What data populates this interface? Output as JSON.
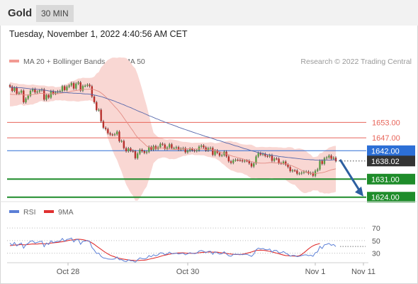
{
  "header": {
    "title": "Gold",
    "timeframe": "30 MIN"
  },
  "datetime": "Tuesday, November 1, 2022 4:40:56 AM CET",
  "colors": {
    "resistance": "#e8655a",
    "support": "#1e8c2a",
    "pivot": "#2c6fd6",
    "price_tag": "#333333",
    "bollinger_fill": "#f9d7d3",
    "ma20": "#e38c84",
    "ma50": "#5566aa",
    "candle_up": "#5c9b45",
    "candle_down": "#b7312d",
    "arrow": "#2d5fa0",
    "rsi": "#5b7fd6",
    "rsi_ma": "#e03030"
  },
  "chart_data": [
    {
      "type": "candlestick",
      "title": "",
      "legend": [
        "MA 20 + Bollinger Bands",
        "MA 50"
      ],
      "credit": "Research © 2022 Trading Central",
      "x_ticks": [
        "Oct 28",
        "Oct 30",
        "Nov 1",
        "Nov 11"
      ],
      "y_range": [
        1622,
        1674
      ],
      "close": [
        1666.8,
        1665.2,
        1666.4,
        1664.1,
        1664.5,
        1665.3,
        1660.8,
        1662.2,
        1663.3,
        1665.2,
        1665.9,
        1664.6,
        1664.9,
        1665.4,
        1665.8,
        1661.8,
        1663.6,
        1662.6,
        1665.1,
        1664.1,
        1664.6,
        1665.0,
        1665.1,
        1667.0,
        1665.5,
        1666.8,
        1667.3,
        1668.2,
        1666.1,
        1668.0,
        1668.5,
        1665.3,
        1667.1,
        1667.2,
        1667.6,
        1667.0,
        1663.0,
        1660.8,
        1657.7,
        1657.9,
        1653.4,
        1650.9,
        1650.4,
        1648.8,
        1648.3,
        1648.2,
        1648.4,
        1649.4,
        1645.7,
        1645.8,
        1643.0,
        1641.8,
        1642.9,
        1642.0,
        1641.8,
        1639.1,
        1640.9,
        1642.4,
        1641.8,
        1641.2,
        1641.6,
        1643.5,
        1642.4,
        1643.8,
        1642.7,
        1643.4,
        1644.7,
        1644.4,
        1642.7,
        1643.3,
        1644.5,
        1643.0,
        1643.0,
        1643.4,
        1642.4,
        1642.8,
        1643.0,
        1641.4,
        1642.0,
        1642.8,
        1642.2,
        1641.9,
        1642.2,
        1643.6,
        1644.0,
        1643.3,
        1642.1,
        1643.0,
        1643.1,
        1640.4,
        1642.1,
        1641.2,
        1640.1,
        1640.3,
        1641.6,
        1639.8,
        1637.9,
        1637.3,
        1638.3,
        1638.5,
        1638.4,
        1638.3,
        1637.9,
        1638.2,
        1638.1,
        1637.1,
        1635.9,
        1637.1,
        1639.8,
        1641.1,
        1640.5,
        1640.8,
        1640.0,
        1639.8,
        1640.3,
        1638.1,
        1639.0,
        1638.9,
        1637.2,
        1637.1,
        1637.8,
        1636.6,
        1635.7,
        1634.1,
        1634.4,
        1634.3,
        1633.1,
        1633.2,
        1633.5,
        1633.9,
        1633.9,
        1633.2,
        1633.4,
        1632.3,
        1634.2,
        1634.8,
        1638.1,
        1636.9,
        1639.1,
        1639.4,
        1640.1,
        1638.9,
        1639.3,
        1638.02
      ],
      "ma20": [
        1663.9,
        1663.8,
        1663.8,
        1663.8,
        1663.8,
        1663.9,
        1663.6,
        1663.6,
        1663.6,
        1663.7,
        1663.8,
        1663.9,
        1664.0,
        1664.2,
        1664.3,
        1664.1,
        1664.0,
        1663.9,
        1664.1,
        1664.1,
        1664.1,
        1664.1,
        1664.2,
        1664.4,
        1664.5,
        1664.6,
        1664.8,
        1665.1,
        1665.2,
        1665.3,
        1665.5,
        1665.6,
        1665.8,
        1665.8,
        1665.8,
        1665.9,
        1665.8,
        1665.7,
        1665.3,
        1665.0,
        1664.4,
        1663.7,
        1662.9,
        1662.0,
        1661.1,
        1660.1,
        1659.1,
        1658.2,
        1657.1,
        1656.0,
        1654.7,
        1653.4,
        1652.2,
        1650.9,
        1649.7,
        1648.3,
        1647.2,
        1646.3,
        1645.5,
        1644.7,
        1643.8,
        1643.4,
        1643.2,
        1643.1,
        1643.1,
        1643.1,
        1643.1,
        1643.1,
        1642.9,
        1642.7,
        1642.6,
        1642.6,
        1642.5,
        1642.5,
        1642.6,
        1642.6,
        1642.7,
        1642.7,
        1642.8,
        1642.8,
        1642.8,
        1642.7,
        1642.7,
        1642.7,
        1642.7,
        1642.7,
        1642.5,
        1642.4,
        1642.4,
        1642.2,
        1642.0,
        1641.8,
        1641.6,
        1641.3,
        1641.0,
        1640.7,
        1640.4,
        1640.1,
        1639.8,
        1639.6,
        1639.3,
        1639.1,
        1638.9,
        1638.6,
        1638.4,
        1638.1,
        1637.8,
        1637.6,
        1637.4,
        1637.3,
        1637.2,
        1637.2,
        1637.2,
        1637.3,
        1637.4,
        1637.4,
        1637.3,
        1637.3,
        1637.2,
        1637.1,
        1637.0,
        1636.9,
        1636.7,
        1636.4,
        1636.1,
        1635.7,
        1635.3,
        1634.9,
        1634.4,
        1634.0,
        1633.7,
        1633.5,
        1633.3,
        1633.1,
        1633.1,
        1633.2,
        1633.4,
        1633.5,
        1633.7,
        1634.0,
        1634.3,
        1634.6,
        1634.8,
        1635.0
      ],
      "bollinger_upper": [
        1668.6,
        1668.4,
        1668.2,
        1668.1,
        1667.8,
        1667.8,
        1667.8,
        1667.6,
        1667.5,
        1667.5,
        1667.7,
        1667.5,
        1667.4,
        1667.3,
        1667.3,
        1667.3,
        1667.1,
        1666.9,
        1667.0,
        1667.0,
        1666.6,
        1666.7,
        1666.8,
        1667.4,
        1667.5,
        1667.9,
        1668.4,
        1669.0,
        1669.1,
        1669.5,
        1670.0,
        1670.0,
        1670.3,
        1670.2,
        1670.2,
        1670.2,
        1670.3,
        1670.7,
        1671.9,
        1672.5,
        1674.3,
        1675.2,
        1676.3,
        1677.2,
        1677.7,
        1678.1,
        1678.1,
        1678.0,
        1678.2,
        1678.1,
        1678.1,
        1677.9,
        1677.1,
        1676.1,
        1674.8,
        1673.9,
        1671.7,
        1668.8,
        1665.8,
        1662.5,
        1659.5,
        1655.9,
        1652.4,
        1649.0,
        1648.1,
        1647.3,
        1647.1,
        1646.8,
        1646.4,
        1646.3,
        1646.5,
        1646.4,
        1646.3,
        1646.1,
        1645.9,
        1645.6,
        1645.4,
        1645.4,
        1645.3,
        1645.2,
        1645.0,
        1645.1,
        1645.1,
        1645.1,
        1645.2,
        1645.2,
        1645.1,
        1645.2,
        1645.3,
        1645.2,
        1644.9,
        1645.0,
        1645.2,
        1645.5,
        1645.5,
        1645.7,
        1645.8,
        1645.8,
        1645.4,
        1645.4,
        1645.1,
        1644.7,
        1644.5,
        1644.4,
        1644.3,
        1644.4,
        1644.3,
        1643.9,
        1643.4,
        1643.4,
        1643.5,
        1643.5,
        1643.4,
        1643.4,
        1643.5,
        1643.4,
        1643.4,
        1643.4,
        1643.3,
        1643.3,
        1643.1,
        1643.1,
        1643.4,
        1643.4,
        1643.2,
        1642.6,
        1642.8,
        1642.9,
        1642.7,
        1642.4,
        1641.8,
        1641.0,
        1640.5,
        1639.5,
        1639.6,
        1639.8,
        1641.0,
        1641.2,
        1642.0,
        1642.5,
        1643.2,
        1643.5,
        1643.8,
        1643.9
      ],
      "bollinger_lower": [
        1659.2,
        1659.2,
        1659.4,
        1659.5,
        1659.8,
        1660.0,
        1659.4,
        1659.6,
        1659.7,
        1659.9,
        1659.9,
        1660.3,
        1660.6,
        1661.1,
        1661.3,
        1660.9,
        1660.9,
        1660.9,
        1661.2,
        1661.2,
        1661.6,
        1661.5,
        1661.6,
        1661.4,
        1661.5,
        1661.3,
        1661.2,
        1661.2,
        1661.3,
        1661.1,
        1661.0,
        1661.2,
        1661.3,
        1661.4,
        1661.4,
        1661.6,
        1661.3,
        1660.7,
        1658.7,
        1657.5,
        1654.5,
        1652.2,
        1649.5,
        1646.8,
        1644.5,
        1642.1,
        1640.1,
        1638.4,
        1636.0,
        1633.9,
        1631.3,
        1628.9,
        1627.3,
        1625.7,
        1624.6,
        1622.7,
        1622.7,
        1623.8,
        1625.2,
        1626.9,
        1628.1,
        1630.9,
        1634.0,
        1637.2,
        1638.1,
        1638.9,
        1639.1,
        1639.4,
        1639.4,
        1639.1,
        1638.7,
        1638.8,
        1638.7,
        1638.9,
        1639.3,
        1639.6,
        1640.0,
        1640.0,
        1640.3,
        1640.4,
        1640.6,
        1640.3,
        1640.3,
        1640.3,
        1640.2,
        1640.2,
        1639.9,
        1639.6,
        1639.5,
        1639.2,
        1639.1,
        1638.6,
        1638.0,
        1637.1,
        1636.5,
        1635.7,
        1635.0,
        1634.4,
        1634.2,
        1633.8,
        1633.5,
        1633.5,
        1633.3,
        1632.8,
        1632.5,
        1631.8,
        1631.3,
        1631.3,
        1631.4,
        1631.2,
        1630.9,
        1630.9,
        1631.0,
        1631.2,
        1631.3,
        1631.4,
        1631.2,
        1631.2,
        1631.1,
        1630.9,
        1630.9,
        1630.7,
        1630.0,
        1629.4,
        1629.0,
        1628.8,
        1627.8,
        1626.9,
        1626.1,
        1625.6,
        1625.6,
        1626.0,
        1626.1,
        1626.7,
        1626.6,
        1626.6,
        1625.8,
        1625.8,
        1625.4,
        1625.5,
        1625.4,
        1625.7,
        1625.8,
        1626.1
      ],
      "ma50": [
        1666.7,
        1666.6,
        1666.5,
        1666.5,
        1666.4,
        1666.4,
        1666.3,
        1666.2,
        1666.1,
        1666.0,
        1665.9,
        1665.9,
        1665.8,
        1665.7,
        1665.6,
        1665.5,
        1665.4,
        1665.2,
        1665.1,
        1665.0,
        1664.9,
        1664.8,
        1664.7,
        1664.6,
        1664.5,
        1664.5,
        1664.4,
        1664.4,
        1664.3,
        1664.3,
        1664.2,
        1664.2,
        1664.1,
        1664.0,
        1664.0,
        1663.9,
        1663.8,
        1663.6,
        1663.4,
        1663.2,
        1663.0,
        1662.7,
        1662.4,
        1662.1,
        1661.8,
        1661.5,
        1661.2,
        1660.8,
        1660.5,
        1660.1,
        1659.8,
        1659.4,
        1659.0,
        1658.7,
        1658.3,
        1657.9,
        1657.5,
        1657.1,
        1656.8,
        1656.4,
        1656.0,
        1655.6,
        1655.3,
        1654.9,
        1654.5,
        1654.2,
        1653.8,
        1653.5,
        1653.1,
        1652.8,
        1652.4,
        1652.1,
        1651.8,
        1651.5,
        1651.1,
        1650.8,
        1650.5,
        1650.2,
        1649.9,
        1649.6,
        1649.3,
        1649.0,
        1648.7,
        1648.4,
        1648.1,
        1647.8,
        1647.5,
        1647.3,
        1647.0,
        1646.7,
        1646.4,
        1646.1,
        1645.9,
        1645.6,
        1645.3,
        1645.0,
        1644.8,
        1644.5,
        1644.2,
        1643.9,
        1643.7,
        1643.4,
        1643.1,
        1642.8,
        1642.6,
        1642.3,
        1642.0,
        1641.8,
        1641.5,
        1641.3,
        1641.1,
        1640.9,
        1640.7,
        1640.5,
        1640.4,
        1640.2,
        1640.1,
        1640.0,
        1639.8,
        1639.7,
        1639.6,
        1639.5,
        1639.4,
        1639.3,
        1639.2,
        1639.1,
        1639.0,
        1638.9,
        1638.8,
        1638.7,
        1638.6,
        1638.6,
        1638.5,
        1638.5,
        1638.4,
        1638.4,
        1638.4,
        1638.4,
        1638.4,
        1638.4,
        1638.4,
        1638.4,
        1638.5,
        1638.5
      ],
      "levels": [
        {
          "value": 1653.0,
          "label": "1653.00",
          "kind": "resistance"
        },
        {
          "value": 1647.0,
          "label": "1647.00",
          "kind": "resistance"
        },
        {
          "value": 1642.0,
          "label": "1642.00",
          "kind": "pivot"
        },
        {
          "value": 1638.02,
          "label": "1638.02",
          "kind": "price"
        },
        {
          "value": 1631.0,
          "label": "1631.00",
          "kind": "support"
        },
        {
          "value": 1624.0,
          "label": "1624.00",
          "kind": "support"
        }
      ],
      "forecast_arrow": {
        "from": 1638.02,
        "to": 1624.0
      }
    },
    {
      "type": "line",
      "title": "",
      "legend": [
        "RSI",
        "9MA"
      ],
      "y_range": [
        15,
        78
      ],
      "y_ticks": [
        70,
        50,
        30
      ],
      "x_ticks": [
        "Oct 28",
        "Oct 30",
        "Nov 1",
        "Nov 11"
      ],
      "series": [
        {
          "name": "RSI",
          "values": [
            46.2,
            42.3,
            47.1,
            41.5,
            44.4,
            46.3,
            38.0,
            43.3,
            45.6,
            49.2,
            49.8,
            46.0,
            47.2,
            48.4,
            49.2,
            40.3,
            46.2,
            43.9,
            49.8,
            46.8,
            48.1,
            48.9,
            49.0,
            53.5,
            48.9,
            51.9,
            52.6,
            54.0,
            47.8,
            51.6,
            51.8,
            44.1,
            48.9,
            49.2,
            50.3,
            48.5,
            39.1,
            35.0,
            29.6,
            30.2,
            25.0,
            22.5,
            22.1,
            20.9,
            20.6,
            20.5,
            21.1,
            24.2,
            19.7,
            20.0,
            17.7,
            16.7,
            19.5,
            18.2,
            18.0,
            15.6,
            19.5,
            22.6,
            21.5,
            21.0,
            22.0,
            26.2,
            24.3,
            27.6,
            25.9,
            27.5,
            30.8,
            30.3,
            27.7,
            29.0,
            31.8,
            29.3,
            29.4,
            30.3,
            28.8,
            29.6,
            30.1,
            27.5,
            29.2,
            30.9,
            29.8,
            29.4,
            30.2,
            33.4,
            34.3,
            33.0,
            30.9,
            32.9,
            33.1,
            28.3,
            32.3,
            30.6,
            28.7,
            29.2,
            32.3,
            28.9,
            25.9,
            25.1,
            27.9,
            28.5,
            28.3,
            28.2,
            27.6,
            28.5,
            28.3,
            26.7,
            25.0,
            28.5,
            35.2,
            38.2,
            36.8,
            37.5,
            35.8,
            35.4,
            36.7,
            31.9,
            34.6,
            34.3,
            30.8,
            30.7,
            32.8,
            30.1,
            28.3,
            25.4,
            26.6,
            26.4,
            24.6,
            25.2,
            26.2,
            27.3,
            27.5,
            26.1,
            26.9,
            25.1,
            30.7,
            32.2,
            40.9,
            37.5,
            43.4,
            44.1,
            45.6,
            42.6,
            43.9,
            40.7
          ]
        },
        {
          "name": "9MA",
          "values": [
            42.0,
            42.4,
            43.0,
            43.0,
            43.5,
            43.9,
            43.3,
            43.5,
            43.9,
            44.4,
            44.7,
            44.5,
            44.6,
            45.0,
            45.3,
            44.8,
            45.1,
            45.4,
            46.2,
            46.4,
            46.8,
            47.2,
            47.9,
            48.3,
            48.9,
            49.7,
            50.4,
            51.0,
            51.2,
            52.0,
            52.2,
            51.9,
            51.6,
            50.7,
            49.6,
            48.6,
            46.4,
            44.1,
            41.3,
            38.7,
            36.2,
            33.5,
            31.1,
            28.9,
            26.9,
            25.5,
            24.2,
            22.9,
            22.0,
            21.2,
            20.5,
            19.9,
            19.4,
            19.1,
            18.8,
            18.4,
            18.4,
            18.7,
            18.9,
            19.1,
            19.6,
            20.5,
            21.3,
            22.1,
            23.0,
            23.9,
            25.0,
            26.1,
            26.8,
            27.7,
            28.6,
            29.2,
            29.7,
            30.1,
            30.5,
            30.5,
            30.6,
            30.3,
            30.2,
            30.0,
            29.9,
            30.0,
            30.4,
            30.8,
            31.2,
            31.4,
            31.6,
            31.9,
            32.0,
            31.6,
            31.8,
            31.6,
            31.1,
            30.8,
            30.4,
            29.7,
            29.1,
            28.7,
            28.3,
            28.1,
            27.9,
            27.7,
            28.4,
            29.2,
            30.0,
            31.0,
            32.0,
            33.2,
            34.4,
            34.7,
            34.9,
            34.7,
            34.3,
            33.6,
            33.0,
            32.0,
            31.1,
            30.2,
            29.3,
            28.2,
            27.2,
            26.4,
            26.1,
            25.8,
            25.6,
            25.5,
            25.4,
            26.0,
            28.1,
            30.9,
            33.8,
            36.8,
            39.5,
            41.8,
            43.3,
            44.4,
            45.5
          ]
        }
      ]
    }
  ]
}
